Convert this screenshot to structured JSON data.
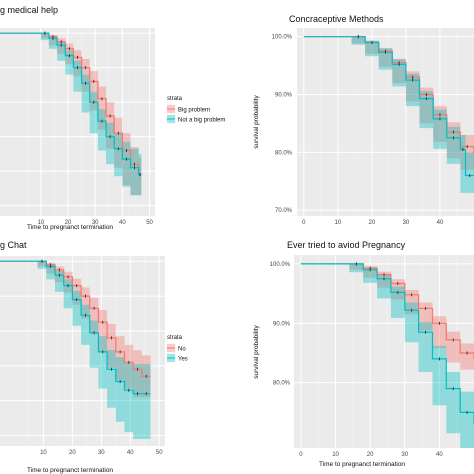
{
  "chart_data": [
    {
      "type": "line",
      "title": "g medical help",
      "xlabel": "Time to pregnanct termination",
      "ylabel": "",
      "xlim": [
        -5,
        52
      ],
      "ylim": [
        0.47,
        1.015
      ],
      "grid": true,
      "x_ticks": [
        10,
        20,
        30,
        40,
        50
      ],
      "y_ticks": [],
      "legend": {
        "title": "strata",
        "placement": "right",
        "entries": [
          "Big problem",
          "Not a big problem"
        ]
      },
      "series": [
        {
          "name": "Big problem",
          "color": "#f8766d",
          "x": [
            -5,
            10,
            13,
            16,
            19,
            22,
            25,
            28,
            31,
            34,
            37,
            40,
            43,
            46,
            47
          ],
          "y": [
            1.0,
            1.0,
            0.99,
            0.975,
            0.955,
            0.93,
            0.9,
            0.86,
            0.81,
            0.76,
            0.71,
            0.66,
            0.62,
            0.59,
            0.59
          ],
          "lower": [
            1.0,
            1.0,
            0.985,
            0.965,
            0.94,
            0.91,
            0.875,
            0.83,
            0.775,
            0.72,
            0.665,
            0.61,
            0.56,
            0.53,
            0.53
          ],
          "upper": [
            1.0,
            1.0,
            0.995,
            0.985,
            0.97,
            0.95,
            0.925,
            0.89,
            0.845,
            0.8,
            0.755,
            0.71,
            0.67,
            0.64,
            0.64
          ]
        },
        {
          "name": "Not a big problem",
          "color": "#00bfc4",
          "x": [
            -5,
            10,
            13,
            16,
            19,
            22,
            25,
            28,
            31,
            34,
            37,
            40,
            43,
            46,
            47
          ],
          "y": [
            1.0,
            1.0,
            0.985,
            0.965,
            0.935,
            0.9,
            0.855,
            0.8,
            0.745,
            0.7,
            0.665,
            0.635,
            0.61,
            0.59,
            0.59
          ],
          "lower": [
            1.0,
            1.0,
            0.98,
            0.955,
            0.92,
            0.88,
            0.83,
            0.77,
            0.71,
            0.66,
            0.62,
            0.585,
            0.555,
            0.53,
            0.53
          ],
          "upper": [
            1.0,
            1.0,
            0.99,
            0.975,
            0.95,
            0.92,
            0.88,
            0.83,
            0.78,
            0.74,
            0.71,
            0.685,
            0.665,
            0.65,
            0.65
          ]
        }
      ]
    },
    {
      "type": "line",
      "title": "Concraceptive Methods",
      "xlabel": "",
      "ylabel": "survival probability",
      "xlim": [
        -2,
        50
      ],
      "ylim": [
        0.69,
        1.015
      ],
      "grid": true,
      "x_ticks": [
        0,
        10,
        20,
        30,
        40
      ],
      "y_ticks": [
        1.0,
        0.9,
        0.8,
        0.7
      ],
      "y_tick_labels": [
        "100.0%",
        "90.0%",
        "80.0%",
        "70.0%"
      ],
      "legend": {
        "title": "",
        "placement": "none",
        "entries": []
      },
      "series": [
        {
          "name": "",
          "color": "#f8766d",
          "x": [
            0,
            14,
            18,
            22,
            26,
            30,
            34,
            38,
            42,
            46,
            50
          ],
          "y": [
            1.0,
            1.0,
            0.99,
            0.975,
            0.955,
            0.93,
            0.9,
            0.865,
            0.835,
            0.81,
            0.795
          ],
          "lower": [
            1.0,
            1.0,
            0.988,
            0.97,
            0.948,
            0.92,
            0.888,
            0.85,
            0.818,
            0.79,
            0.77
          ],
          "upper": [
            1.0,
            1.0,
            0.993,
            0.98,
            0.962,
            0.94,
            0.912,
            0.88,
            0.852,
            0.83,
            0.82
          ]
        },
        {
          "name": "",
          "color": "#00bfc4",
          "x": [
            0,
            14,
            18,
            22,
            26,
            30,
            34,
            38,
            42,
            46,
            47.5,
            50
          ],
          "y": [
            1.0,
            1.0,
            0.99,
            0.973,
            0.952,
            0.925,
            0.893,
            0.858,
            0.825,
            0.805,
            0.76,
            0.76
          ],
          "lower": [
            1.0,
            1.0,
            0.986,
            0.966,
            0.943,
            0.914,
            0.88,
            0.842,
            0.806,
            0.78,
            0.73,
            0.73
          ],
          "upper": [
            1.0,
            1.0,
            0.993,
            0.98,
            0.961,
            0.936,
            0.906,
            0.874,
            0.844,
            0.83,
            0.8,
            0.8
          ]
        }
      ]
    },
    {
      "type": "line",
      "title": "g Chat",
      "xlabel": "Time to pregnanct termination",
      "ylabel": "",
      "xlim": [
        -5,
        52
      ],
      "ylim": [
        0.47,
        1.015
      ],
      "grid": true,
      "x_ticks": [
        10,
        20,
        30,
        40,
        50
      ],
      "y_ticks": [],
      "legend": {
        "title": "strata",
        "placement": "right",
        "entries": [
          "No",
          "Yes"
        ]
      },
      "series": [
        {
          "name": "No",
          "color": "#f8766d",
          "x": [
            -5,
            8,
            11,
            14,
            17,
            20,
            23,
            26,
            29,
            32,
            35,
            38,
            41,
            44,
            47
          ],
          "y": [
            1.0,
            1.0,
            0.99,
            0.975,
            0.955,
            0.93,
            0.9,
            0.865,
            0.825,
            0.78,
            0.74,
            0.71,
            0.69,
            0.67,
            0.67
          ],
          "lower": [
            1.0,
            1.0,
            0.985,
            0.965,
            0.94,
            0.91,
            0.875,
            0.835,
            0.79,
            0.74,
            0.695,
            0.66,
            0.635,
            0.61,
            0.61
          ],
          "upper": [
            1.0,
            1.0,
            0.995,
            0.985,
            0.97,
            0.95,
            0.925,
            0.895,
            0.86,
            0.82,
            0.785,
            0.76,
            0.745,
            0.73,
            0.73
          ]
        },
        {
          "name": "Yes",
          "color": "#00bfc4",
          "x": [
            -5,
            8,
            11,
            14,
            17,
            20,
            23,
            26,
            29,
            32,
            35,
            38,
            41,
            44,
            47
          ],
          "y": [
            1.0,
            1.0,
            0.985,
            0.96,
            0.93,
            0.89,
            0.845,
            0.795,
            0.74,
            0.69,
            0.655,
            0.63,
            0.62,
            0.62,
            0.62
          ],
          "lower": [
            1.0,
            1.0,
            0.978,
            0.948,
            0.912,
            0.865,
            0.815,
            0.76,
            0.695,
            0.635,
            0.58,
            0.54,
            0.51,
            0.49,
            0.49
          ],
          "upper": [
            1.0,
            1.0,
            0.99,
            0.972,
            0.948,
            0.915,
            0.875,
            0.83,
            0.785,
            0.745,
            0.725,
            0.71,
            0.705,
            0.705,
            0.705
          ]
        }
      ]
    },
    {
      "type": "line",
      "title": "Ever tried to aviod Pregnancy",
      "xlabel": "Time to pregnanct termination",
      "ylabel": "survival probability",
      "xlim": [
        -2,
        50
      ],
      "ylim": [
        0.69,
        1.015
      ],
      "grid": true,
      "x_ticks": [
        0,
        10,
        20,
        30,
        40
      ],
      "y_ticks": [
        1.0,
        0.9,
        0.8
      ],
      "y_tick_labels": [
        "100.0%",
        "90.0%",
        "80.0%"
      ],
      "legend": {
        "title": "",
        "placement": "none",
        "entries": []
      },
      "series": [
        {
          "name": "",
          "color": "#f8766d",
          "x": [
            0,
            14,
            18,
            22,
            26,
            30,
            34,
            38,
            42,
            46,
            50
          ],
          "y": [
            1.0,
            1.0,
            0.993,
            0.982,
            0.967,
            0.948,
            0.925,
            0.9,
            0.872,
            0.85,
            0.84
          ],
          "lower": [
            1.0,
            1.0,
            0.99,
            0.977,
            0.96,
            0.94,
            0.915,
            0.888,
            0.858,
            0.834,
            0.822
          ],
          "upper": [
            1.0,
            1.0,
            0.996,
            0.987,
            0.974,
            0.956,
            0.935,
            0.912,
            0.886,
            0.866,
            0.858
          ]
        },
        {
          "name": "",
          "color": "#00bfc4",
          "x": [
            0,
            14,
            18,
            22,
            26,
            30,
            34,
            38,
            42,
            46,
            50
          ],
          "y": [
            1.0,
            1.0,
            0.99,
            0.975,
            0.952,
            0.922,
            0.885,
            0.84,
            0.79,
            0.75,
            0.73
          ],
          "lower": [
            1.0,
            1.0,
            0.986,
            0.968,
            0.942,
            0.909,
            0.868,
            0.818,
            0.762,
            0.715,
            0.69
          ],
          "upper": [
            1.0,
            1.0,
            0.994,
            0.982,
            0.962,
            0.935,
            0.902,
            0.862,
            0.818,
            0.785,
            0.77
          ]
        }
      ]
    }
  ]
}
